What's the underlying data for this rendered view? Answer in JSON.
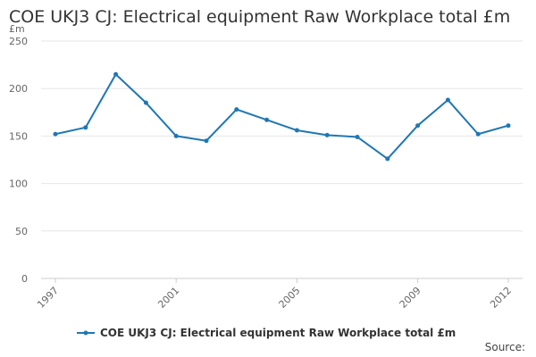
{
  "chart_data": {
    "type": "line",
    "title": "COE UKJ3 CJ: Electrical equipment Raw Workplace total £m",
    "unit_label": "£m",
    "xlabel": "",
    "ylabel": "",
    "ylim": [
      0,
      250
    ],
    "yticks": [
      "0",
      "50",
      "100",
      "150",
      "200",
      "250"
    ],
    "x": [
      1997,
      1998,
      1999,
      2000,
      2001,
      2002,
      2003,
      2004,
      2005,
      2006,
      2007,
      2008,
      2009,
      2010,
      2011,
      2012
    ],
    "xtick_labels": [
      "1997",
      "2001",
      "2005",
      "2009",
      "2012"
    ],
    "grid": true,
    "legend_position": "bottom",
    "series": [
      {
        "name": "COE UKJ3 CJ: Electrical equipment Raw Workplace total £m",
        "color": "#1f77b4",
        "values": [
          152,
          159,
          215,
          185,
          150,
          145,
          178,
          167,
          156,
          151,
          149,
          126,
          161,
          188,
          152,
          161
        ]
      }
    ],
    "source_label": "Source:"
  }
}
